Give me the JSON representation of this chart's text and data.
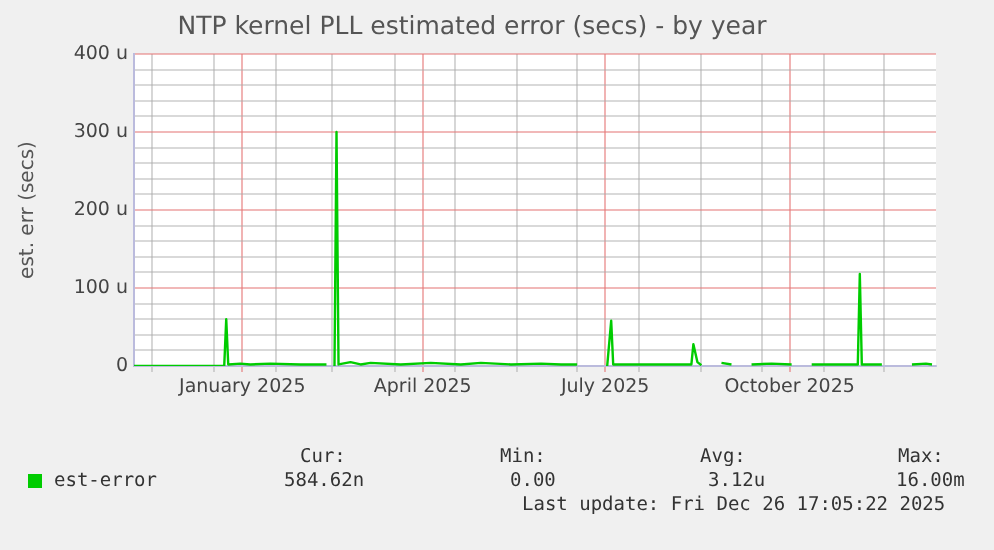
{
  "chart_data": {
    "type": "line",
    "title": "NTP kernel PLL estimated error (secs) - by year",
    "ylabel": "est. err (secs)",
    "x": [
      "2024-11-22",
      "2025-01-06",
      "2025-01-07",
      "2025-01-08",
      "2025-01-14",
      "2025-01-19",
      "2025-01-29",
      "2025-02-13",
      "2025-02-26",
      "2025-02-28",
      "2025-03-02",
      "2025-03-03",
      "2025-03-04",
      "2025-03-10",
      "2025-03-15",
      "2025-03-20",
      "2025-04-04",
      "2025-04-19",
      "2025-05-04",
      "2025-05-14",
      "2025-05-29",
      "2025-06-13",
      "2025-06-23",
      "2025-07-01",
      "2025-07-03",
      "2025-07-16",
      "2025-07-18",
      "2025-07-19",
      "2025-08-02",
      "2025-08-27",
      "2025-08-28",
      "2025-08-30",
      "2025-09-01",
      "2025-09-06",
      "2025-09-11",
      "2025-09-16",
      "2025-09-21",
      "2025-09-26",
      "2025-10-06",
      "2025-10-16",
      "2025-10-21",
      "2025-10-26",
      "2025-11-10",
      "2025-11-18",
      "2025-11-19",
      "2025-11-20",
      "2025-11-30",
      "2025-12-10",
      "2025-12-15",
      "2025-12-22",
      "2025-12-25"
    ],
    "series": [
      {
        "name": "est-error",
        "color": "#00cc00",
        "values": [
          0,
          0,
          60,
          2,
          3,
          2,
          3,
          2,
          2,
          null,
          0,
          300,
          2,
          5,
          2,
          4,
          2,
          4,
          2,
          4,
          2,
          3,
          2,
          2,
          null,
          0,
          58,
          2,
          2,
          2,
          28,
          5,
          1,
          null,
          4,
          2,
          null,
          2,
          3,
          2,
          null,
          2,
          2,
          2,
          118,
          2,
          2,
          null,
          2,
          3,
          2
        ]
      }
    ],
    "xlim": [
      "2024-11-22",
      "2025-12-27"
    ],
    "xticks": [
      {
        "value": "2024-12-01",
        "label": null
      },
      {
        "value": "2025-01-01",
        "label": null
      },
      {
        "value": "2025-01-15",
        "label": "January 2025"
      },
      {
        "value": "2025-02-01",
        "label": null
      },
      {
        "value": "2025-03-01",
        "label": null
      },
      {
        "value": "2025-04-01",
        "label": null
      },
      {
        "value": "2025-04-15",
        "label": "April 2025"
      },
      {
        "value": "2025-05-01",
        "label": null
      },
      {
        "value": "2025-06-01",
        "label": null
      },
      {
        "value": "2025-07-01",
        "label": null
      },
      {
        "value": "2025-07-15",
        "label": "July 2025"
      },
      {
        "value": "2025-08-01",
        "label": null
      },
      {
        "value": "2025-09-01",
        "label": null
      },
      {
        "value": "2025-10-01",
        "label": null
      },
      {
        "value": "2025-10-15",
        "label": "October 2025"
      },
      {
        "value": "2025-11-01",
        "label": null
      },
      {
        "value": "2025-12-01",
        "label": null
      }
    ],
    "ylim": [
      0,
      400
    ],
    "yticks": [
      0,
      {
        "value": 20,
        "label": null
      },
      {
        "value": 40,
        "label": null
      },
      {
        "value": 60,
        "label": null
      },
      {
        "value": 80,
        "label": null
      },
      {
        "value": 100,
        "label": "100 u"
      },
      {
        "value": 120,
        "label": null
      },
      {
        "value": 140,
        "label": null
      },
      {
        "value": 160,
        "label": null
      },
      {
        "value": 180,
        "label": null
      },
      {
        "value": 200,
        "label": "200 u"
      },
      {
        "value": 220,
        "label": null
      },
      {
        "value": 240,
        "label": null
      },
      {
        "value": 260,
        "label": null
      },
      {
        "value": 280,
        "label": null
      },
      {
        "value": 300,
        "label": "300 u"
      },
      {
        "value": 320,
        "label": null
      },
      {
        "value": 340,
        "label": null
      },
      {
        "value": 360,
        "label": null
      },
      {
        "value": 380,
        "label": null
      },
      {
        "value": 400,
        "label": "400 u"
      }
    ],
    "grid": true,
    "legend": "bottom left",
    "marker": "none",
    "line_style": "solid",
    "annotations": [
      "Cur:",
      "584.62n",
      "Min:",
      "0.00",
      "Avg:",
      "3.12u",
      "Max:",
      "16.00m",
      "Last update: Fri Dec 26 17:05:22 2025"
    ]
  }
}
